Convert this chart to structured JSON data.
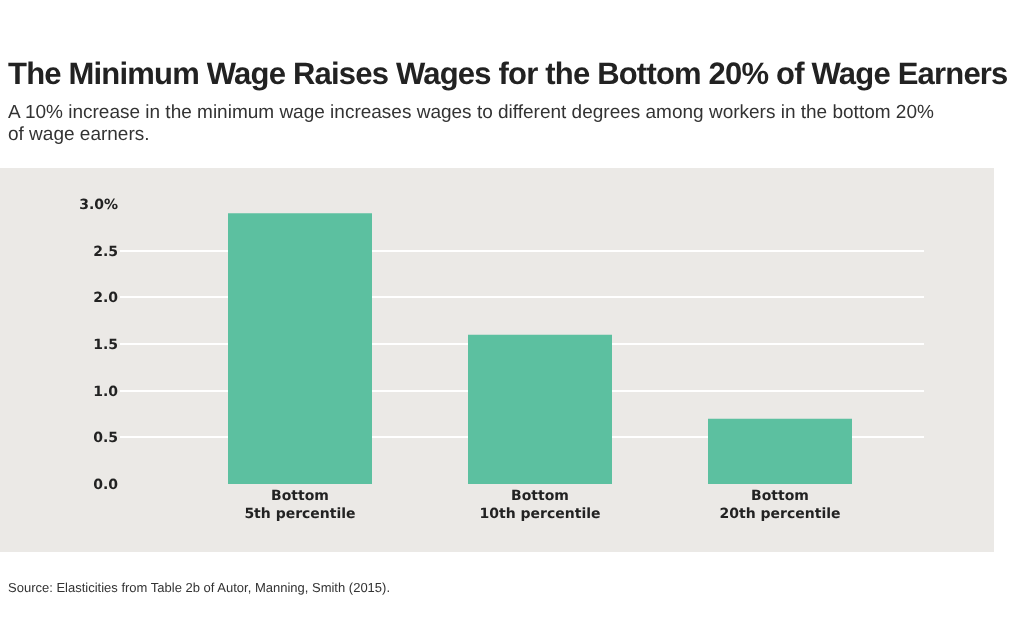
{
  "chart_data": {
    "type": "bar",
    "title": "The Minimum Wage Raises Wages for the Bottom 20% of Wage Earners",
    "subtitle": "A 10% increase in the minimum wage increases wages to different degrees among workers in the bottom 20% of wage earners.",
    "categories": [
      "Bottom 5th percentile",
      "Bottom 10th percentile",
      "Bottom 20th percentile"
    ],
    "values": [
      2.9,
      1.6,
      0.7
    ],
    "color": "#5cc0a0",
    "ylim": [
      0,
      3.0
    ],
    "yticks": [
      {
        "value": 0,
        "label": "0.0"
      },
      {
        "value": 0.5,
        "label": "0.5"
      },
      {
        "value": 1,
        "label": "1.0"
      },
      {
        "value": 1.5,
        "label": "1.5"
      },
      {
        "value": 2,
        "label": "2.0"
      },
      {
        "value": 2.5,
        "label": "2.5"
      },
      {
        "value": 3,
        "label": "3.0%"
      }
    ],
    "grid": "y",
    "annotations": [
      "Source: Elasticities from Table 2b of Autor, Manning, Smith (2015)."
    ]
  }
}
